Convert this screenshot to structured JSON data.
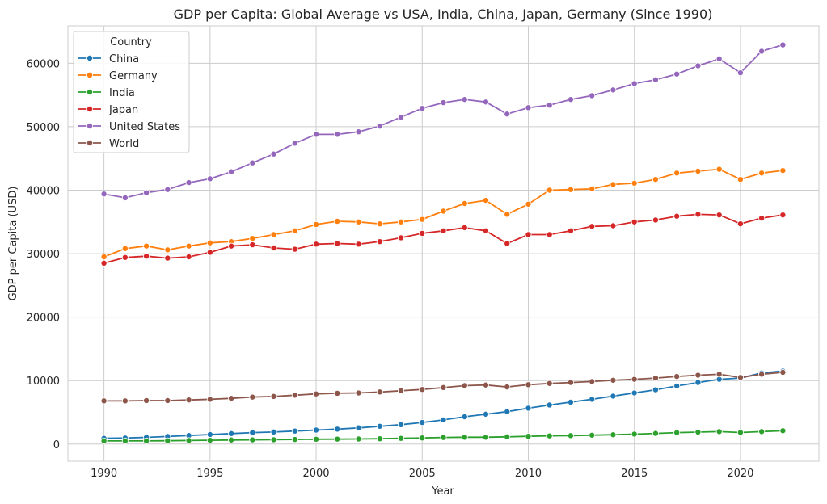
{
  "chart_data": {
    "type": "line",
    "title": "GDP per Capita: Global Average vs USA, India, China, Japan, Germany (Since 1990)",
    "xlabel": "Year",
    "ylabel": "GDP per Capita (USD)",
    "xlim": [
      1988.3,
      2023.7
    ],
    "ylim": [
      -2700,
      65900
    ],
    "xticks": [
      1990,
      1995,
      2000,
      2005,
      2010,
      2015,
      2020
    ],
    "yticks": [
      0,
      10000,
      20000,
      30000,
      40000,
      50000,
      60000
    ],
    "grid": true,
    "legend": {
      "title": "Country",
      "placement": "top-left"
    },
    "x": [
      1990,
      1991,
      1992,
      1993,
      1994,
      1995,
      1996,
      1997,
      1998,
      1999,
      2000,
      2001,
      2002,
      2003,
      2004,
      2005,
      2006,
      2007,
      2008,
      2009,
      2010,
      2011,
      2012,
      2013,
      2014,
      2015,
      2016,
      2017,
      2018,
      2019,
      2020,
      2021,
      2022
    ],
    "series": [
      {
        "name": "China",
        "color": "#1f77b4",
        "values": [
          900,
          950,
          1050,
          1200,
          1350,
          1500,
          1650,
          1800,
          1900,
          2050,
          2200,
          2350,
          2550,
          2800,
          3050,
          3400,
          3800,
          4300,
          4700,
          5100,
          5650,
          6150,
          6600,
          7050,
          7550,
          8050,
          8550,
          9150,
          9700,
          10200,
          10400,
          11200,
          11500
        ]
      },
      {
        "name": "Germany",
        "color": "#ff7f0e",
        "values": [
          29500,
          30800,
          31200,
          30600,
          31200,
          31700,
          31900,
          32400,
          33000,
          33600,
          34600,
          35100,
          35000,
          34700,
          35000,
          35400,
          36700,
          37900,
          38400,
          36200,
          37800,
          40000,
          40100,
          40200,
          40900,
          41100,
          41700,
          42700,
          43000,
          43300,
          41700,
          42700,
          43100
        ]
      },
      {
        "name": "India",
        "color": "#2ca02c",
        "values": [
          500,
          500,
          500,
          520,
          560,
          600,
          640,
          660,
          680,
          720,
          760,
          780,
          800,
          840,
          900,
          960,
          1040,
          1080,
          1080,
          1140,
          1220,
          1290,
          1330,
          1400,
          1470,
          1570,
          1680,
          1800,
          1880,
          1960,
          1820,
          1960,
          2100
        ]
      },
      {
        "name": "Japan",
        "color": "#d62728",
        "values": [
          28500,
          29400,
          29600,
          29300,
          29500,
          30200,
          31200,
          31400,
          30900,
          30700,
          31500,
          31600,
          31500,
          31900,
          32500,
          33200,
          33600,
          34100,
          33600,
          31600,
          33000,
          33000,
          33600,
          34300,
          34400,
          35000,
          35300,
          35900,
          36200,
          36100,
          34700,
          35600,
          36100
        ]
      },
      {
        "name": "United States",
        "color": "#9467bd",
        "values": [
          39400,
          38800,
          39600,
          40100,
          41200,
          41800,
          42900,
          44300,
          45700,
          47400,
          48800,
          48800,
          49200,
          50100,
          51500,
          52900,
          53800,
          54300,
          53900,
          52000,
          53000,
          53400,
          54300,
          54900,
          55800,
          56800,
          57400,
          58300,
          59600,
          60700,
          58500,
          61900,
          62900
        ]
      },
      {
        "name": "World",
        "color": "#8c564b",
        "values": [
          6800,
          6800,
          6850,
          6850,
          6950,
          7050,
          7200,
          7400,
          7500,
          7700,
          7900,
          8000,
          8050,
          8200,
          8400,
          8600,
          8900,
          9200,
          9300,
          9000,
          9350,
          9550,
          9700,
          9850,
          10050,
          10200,
          10400,
          10650,
          10850,
          11000,
          10500,
          11000,
          11300
        ]
      }
    ]
  }
}
